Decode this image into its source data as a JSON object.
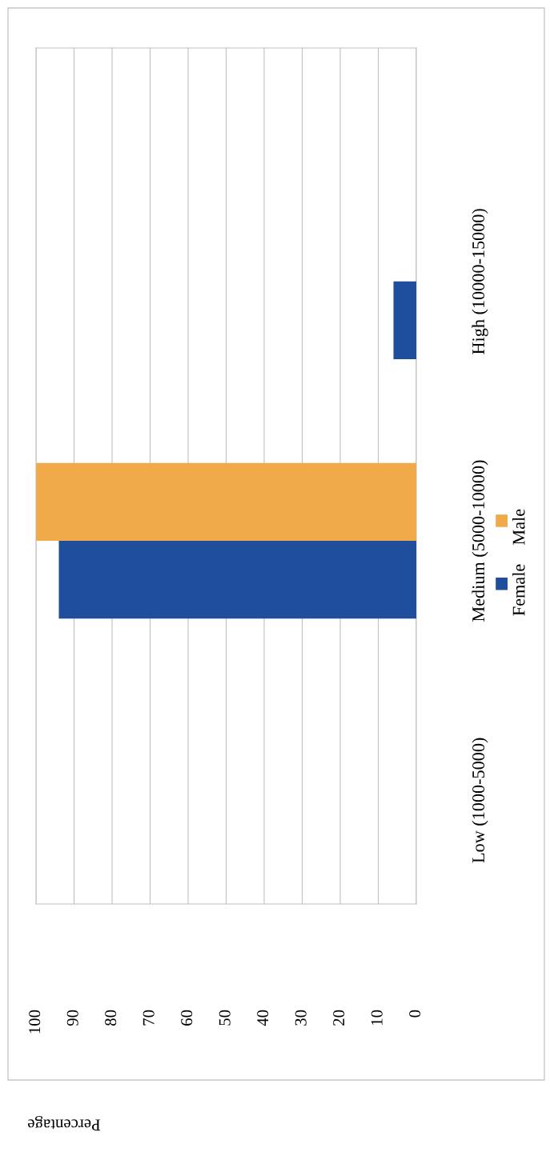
{
  "chart_data": {
    "type": "bar",
    "orientation": "horizontal",
    "categories": [
      "High (10000-15000)",
      "Medium (5000-10000)",
      "Low (1000-5000)"
    ],
    "series": [
      {
        "name": "Female",
        "color": "#1f4e9c",
        "values": [
          6,
          94,
          0
        ]
      },
      {
        "name": "Male",
        "color": "#f0aa4a",
        "values": [
          0,
          100,
          0
        ]
      }
    ],
    "xlabel": "Percentage",
    "xlim": [
      100,
      0
    ],
    "xticks": [
      0,
      10,
      20,
      30,
      40,
      50,
      60,
      70,
      80,
      90,
      100
    ],
    "grid": "x",
    "legend": "right"
  }
}
